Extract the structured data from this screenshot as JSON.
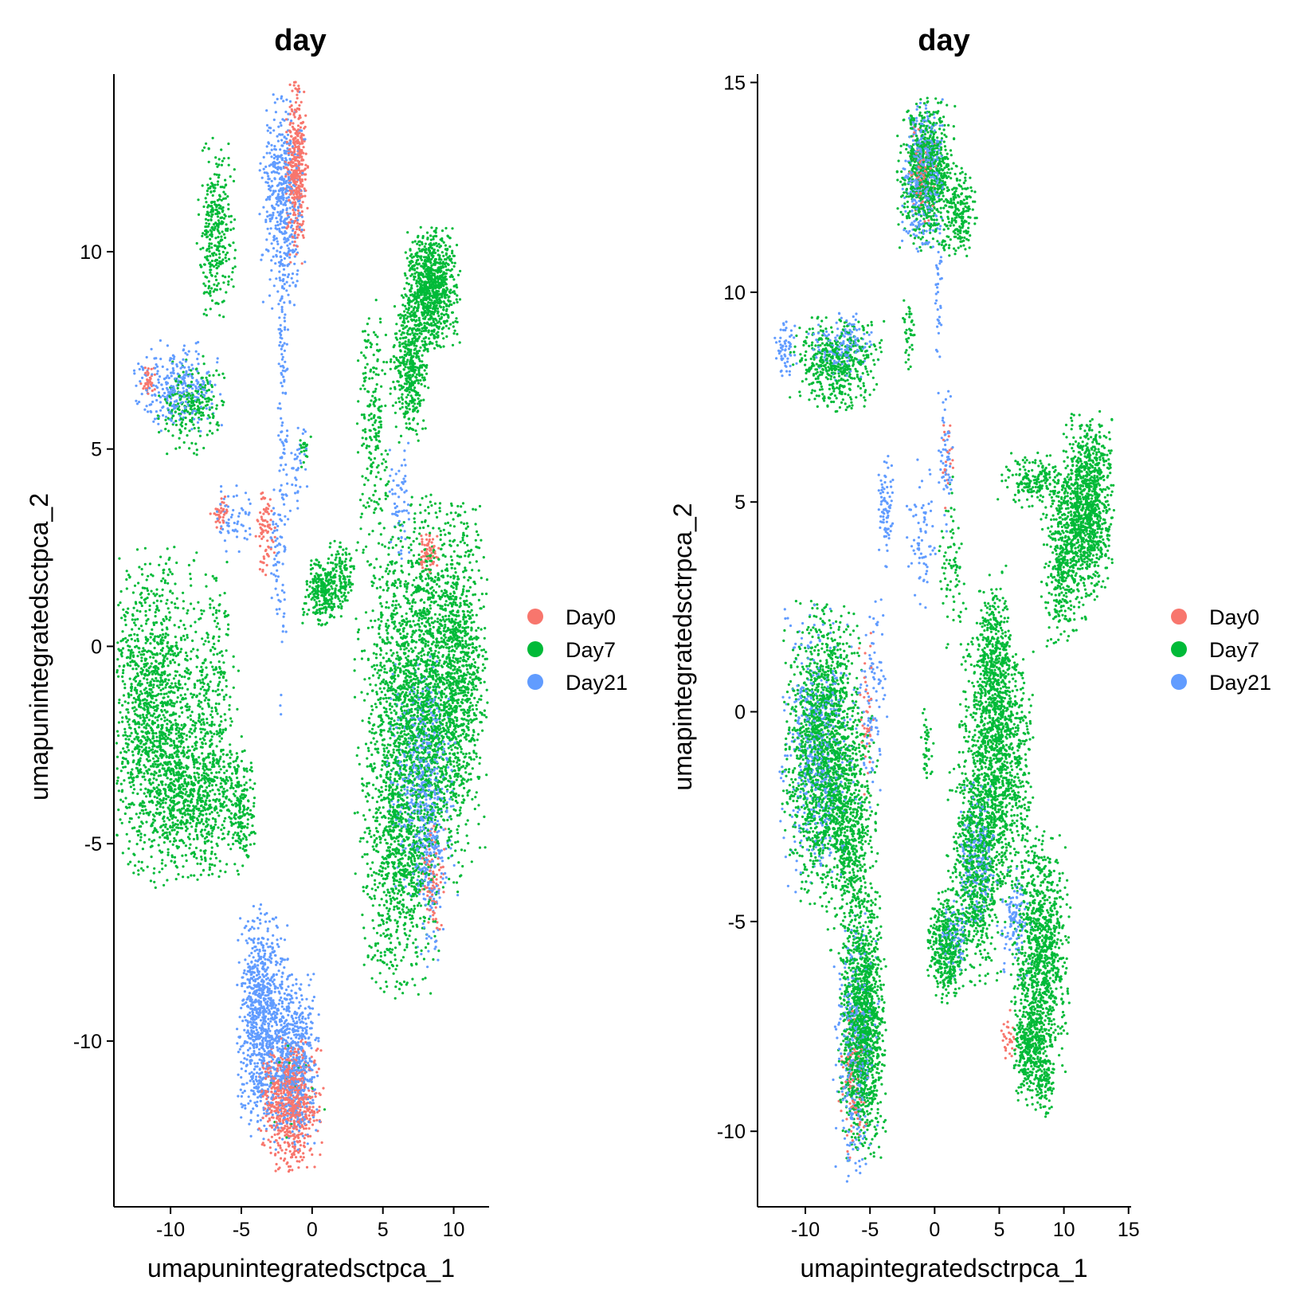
{
  "chart_data": [
    {
      "type": "scatter",
      "title": "day",
      "xlabel": "umapunintegratedsctpca_1",
      "ylabel": "umapunintegratedsctpca_2",
      "xlim": [
        -14,
        12.5
      ],
      "ylim": [
        -14.2,
        14.5
      ],
      "xticks": [
        -10,
        -5,
        0,
        5,
        10
      ],
      "yticks": [
        -10,
        -5,
        0,
        5,
        10
      ],
      "legend_position": "right",
      "clusters": [
        {
          "series": "Day21",
          "x": -2.1,
          "y": 11.3,
          "sx": 0.7,
          "sy": 1.2,
          "n": 450
        },
        {
          "series": "Day0",
          "x": -1.1,
          "y": 12.0,
          "sx": 0.35,
          "sy": 1.0,
          "n": 380
        },
        {
          "series": "Day7",
          "x": -6.8,
          "y": 10.6,
          "sx": 0.6,
          "sy": 1.0,
          "n": 320
        },
        {
          "series": "Day21",
          "x": -2.1,
          "y": 6.0,
          "sx": 0.18,
          "sy": 3.5,
          "n": 150
        },
        {
          "series": "Day21",
          "x": -9.6,
          "y": 6.6,
          "sx": 1.4,
          "sy": 0.5,
          "n": 300
        },
        {
          "series": "Day7",
          "x": -8.6,
          "y": 6.1,
          "sx": 1.1,
          "sy": 0.55,
          "n": 250
        },
        {
          "series": "Day0",
          "x": -11.6,
          "y": 6.7,
          "sx": 0.25,
          "sy": 0.18,
          "n": 40
        },
        {
          "series": "Day0",
          "x": -6.5,
          "y": 3.4,
          "sx": 0.3,
          "sy": 0.2,
          "n": 40
        },
        {
          "series": "Day21",
          "x": -5.5,
          "y": 3.2,
          "sx": 0.6,
          "sy": 0.4,
          "n": 60
        },
        {
          "series": "Day0",
          "x": -3.3,
          "y": 2.9,
          "sx": 0.3,
          "sy": 0.5,
          "n": 80
        },
        {
          "series": "Day21",
          "x": -2.6,
          "y": 2.3,
          "sx": 0.2,
          "sy": 0.8,
          "n": 40
        },
        {
          "series": "Day21",
          "x": -1.0,
          "y": 4.5,
          "sx": 0.4,
          "sy": 0.5,
          "n": 40
        },
        {
          "series": "Day7",
          "x": -0.5,
          "y": 5.0,
          "sx": 0.2,
          "sy": 0.2,
          "n": 20
        },
        {
          "series": "Day7",
          "x": -11.0,
          "y": -1.8,
          "sx": 1.6,
          "sy": 1.9,
          "n": 1500
        },
        {
          "series": "Day7",
          "x": -8.2,
          "y": -3.8,
          "sx": 1.6,
          "sy": 0.9,
          "n": 600
        },
        {
          "series": "Day7",
          "x": -6.8,
          "y": -1.5,
          "sx": 0.7,
          "sy": 1.7,
          "n": 280
        },
        {
          "series": "Day7",
          "x": -5.0,
          "y": -4.2,
          "sx": 0.5,
          "sy": 0.7,
          "n": 180
        },
        {
          "series": "Day21",
          "x": -3.5,
          "y": -9.5,
          "sx": 0.8,
          "sy": 1.3,
          "n": 900
        },
        {
          "series": "Day21",
          "x": -1.3,
          "y": -10.5,
          "sx": 0.8,
          "sy": 1.0,
          "n": 600
        },
        {
          "series": "Day0",
          "x": -1.5,
          "y": -11.6,
          "sx": 1.0,
          "sy": 0.75,
          "n": 700
        },
        {
          "series": "Day7",
          "x": -1.0,
          "y": -11.2,
          "sx": 1.0,
          "sy": 0.6,
          "n": 15
        },
        {
          "series": "Day7",
          "x": 8.4,
          "y": 9.1,
          "sx": 0.9,
          "sy": 0.7,
          "n": 900
        },
        {
          "series": "Day7",
          "x": 6.9,
          "y": 7.0,
          "sx": 0.6,
          "sy": 0.8,
          "n": 400
        },
        {
          "series": "Day7",
          "x": 4.3,
          "y": 5.8,
          "sx": 0.5,
          "sy": 1.5,
          "n": 200
        },
        {
          "series": "Day7",
          "x": 0.7,
          "y": 1.4,
          "sx": 0.6,
          "sy": 0.4,
          "n": 250
        },
        {
          "series": "Day7",
          "x": 2.1,
          "y": 1.8,
          "sx": 0.5,
          "sy": 0.4,
          "n": 120
        },
        {
          "series": "Day0",
          "x": 8.2,
          "y": 2.4,
          "sx": 0.35,
          "sy": 0.25,
          "n": 70
        },
        {
          "series": "Day21",
          "x": 6.2,
          "y": 3.7,
          "sx": 0.35,
          "sy": 0.7,
          "n": 60
        },
        {
          "series": "Day7",
          "x": 7.8,
          "y": -1.2,
          "sx": 2.1,
          "sy": 2.2,
          "n": 2400
        },
        {
          "series": "Day7",
          "x": 10.4,
          "y": -0.5,
          "sx": 0.8,
          "sy": 1.8,
          "n": 600
        },
        {
          "series": "Day7",
          "x": 6.2,
          "y": -5.3,
          "sx": 1.2,
          "sy": 1.6,
          "n": 800
        },
        {
          "series": "Day21",
          "x": 7.8,
          "y": -3.4,
          "sx": 1.1,
          "sy": 1.4,
          "n": 500
        },
        {
          "series": "Day21",
          "x": 8.4,
          "y": -5.5,
          "sx": 0.5,
          "sy": 1.2,
          "n": 150
        },
        {
          "series": "Day0",
          "x": 8.5,
          "y": -5.9,
          "sx": 0.4,
          "sy": 0.8,
          "n": 90
        }
      ]
    },
    {
      "type": "scatter",
      "title": "day",
      "xlabel": "umapintegratedsctrpca_1",
      "ylabel": "umapintegratedsctrpca_2",
      "xlim": [
        -13.7,
        15.2
      ],
      "ylim": [
        -11.8,
        15.2
      ],
      "xticks": [
        -10,
        -5,
        0,
        5,
        10,
        15
      ],
      "yticks": [
        -10,
        -5,
        0,
        5,
        10,
        15
      ],
      "legend_position": "right",
      "clusters": [
        {
          "series": "Day7",
          "x": -0.6,
          "y": 12.8,
          "sx": 1.0,
          "sy": 0.8,
          "n": 800
        },
        {
          "series": "Day21",
          "x": -0.9,
          "y": 12.8,
          "sx": 0.7,
          "sy": 0.8,
          "n": 400
        },
        {
          "series": "Day0",
          "x": -0.9,
          "y": 12.7,
          "sx": 0.5,
          "sy": 0.6,
          "n": 80
        },
        {
          "series": "Day7",
          "x": 1.9,
          "y": 11.9,
          "sx": 0.6,
          "sy": 0.5,
          "n": 200
        },
        {
          "series": "Day21",
          "x": 0.3,
          "y": 10.2,
          "sx": 0.15,
          "sy": 0.8,
          "n": 40
        },
        {
          "series": "Day7",
          "x": -7.6,
          "y": 8.3,
          "sx": 1.6,
          "sy": 0.5,
          "n": 500
        },
        {
          "series": "Day21",
          "x": -7.0,
          "y": 8.7,
          "sx": 1.2,
          "sy": 0.35,
          "n": 150
        },
        {
          "series": "Day21",
          "x": -11.5,
          "y": 8.7,
          "sx": 0.4,
          "sy": 0.3,
          "n": 60
        },
        {
          "series": "Day7",
          "x": -2.0,
          "y": 9.0,
          "sx": 0.2,
          "sy": 0.4,
          "n": 40
        },
        {
          "series": "Day21",
          "x": 0.9,
          "y": 6.0,
          "sx": 0.3,
          "sy": 0.8,
          "n": 60
        },
        {
          "series": "Day0",
          "x": 1.0,
          "y": 6.2,
          "sx": 0.2,
          "sy": 0.6,
          "n": 20
        },
        {
          "series": "Day21",
          "x": -3.8,
          "y": 4.8,
          "sx": 0.3,
          "sy": 0.6,
          "n": 80
        },
        {
          "series": "Day21",
          "x": -1.0,
          "y": 4.2,
          "sx": 0.5,
          "sy": 0.8,
          "n": 70
        },
        {
          "series": "Day7",
          "x": 1.4,
          "y": 3.5,
          "sx": 0.5,
          "sy": 1.0,
          "n": 80
        },
        {
          "series": "Day7",
          "x": 11.8,
          "y": 4.9,
          "sx": 0.9,
          "sy": 1.0,
          "n": 1000
        },
        {
          "series": "Day7",
          "x": 10.0,
          "y": 3.6,
          "sx": 0.8,
          "sy": 0.9,
          "n": 400
        },
        {
          "series": "Day7",
          "x": 7.8,
          "y": 5.5,
          "sx": 1.3,
          "sy": 0.3,
          "n": 200
        },
        {
          "series": "Day7",
          "x": -8.6,
          "y": -1.0,
          "sx": 1.4,
          "sy": 1.6,
          "n": 1700
        },
        {
          "series": "Day21",
          "x": -9.0,
          "y": -0.9,
          "sx": 1.3,
          "sy": 1.5,
          "n": 500
        },
        {
          "series": "Day7",
          "x": -6.3,
          "y": -3.0,
          "sx": 0.9,
          "sy": 1.3,
          "n": 500
        },
        {
          "series": "Day21",
          "x": -4.8,
          "y": 0.3,
          "sx": 0.5,
          "sy": 1.2,
          "n": 100
        },
        {
          "series": "Day0",
          "x": -5.2,
          "y": -0.2,
          "sx": 0.3,
          "sy": 1.0,
          "n": 40
        },
        {
          "series": "Day7",
          "x": -5.6,
          "y": -7.5,
          "sx": 0.8,
          "sy": 1.4,
          "n": 1300
        },
        {
          "series": "Day21",
          "x": -6.1,
          "y": -8.0,
          "sx": 0.8,
          "sy": 1.4,
          "n": 350
        },
        {
          "series": "Day0",
          "x": -6.3,
          "y": -8.8,
          "sx": 0.5,
          "sy": 0.9,
          "n": 100
        },
        {
          "series": "Day7",
          "x": -0.6,
          "y": -0.8,
          "sx": 0.25,
          "sy": 0.4,
          "n": 40
        },
        {
          "series": "Day7",
          "x": 4.6,
          "y": 1.2,
          "sx": 0.6,
          "sy": 1.0,
          "n": 350
        },
        {
          "series": "Day7",
          "x": 4.8,
          "y": -1.2,
          "sx": 1.3,
          "sy": 1.5,
          "n": 1300
        },
        {
          "series": "Day7",
          "x": 3.2,
          "y": -3.8,
          "sx": 1.0,
          "sy": 1.2,
          "n": 700
        },
        {
          "series": "Day21",
          "x": 3.3,
          "y": -3.5,
          "sx": 0.7,
          "sy": 0.8,
          "n": 200
        },
        {
          "series": "Day7",
          "x": 0.9,
          "y": -5.6,
          "sx": 0.7,
          "sy": 0.6,
          "n": 400
        },
        {
          "series": "Day21",
          "x": 1.5,
          "y": -5.4,
          "sx": 0.5,
          "sy": 0.4,
          "n": 80
        },
        {
          "series": "Day7",
          "x": 8.2,
          "y": -5.7,
          "sx": 1.0,
          "sy": 1.3,
          "n": 1000
        },
        {
          "series": "Day7",
          "x": 7.5,
          "y": -8.0,
          "sx": 0.7,
          "sy": 0.6,
          "n": 350
        },
        {
          "series": "Day7",
          "x": 8.6,
          "y": -9.0,
          "sx": 0.35,
          "sy": 0.3,
          "n": 80
        },
        {
          "series": "Day21",
          "x": 6.2,
          "y": -5.0,
          "sx": 0.6,
          "sy": 0.6,
          "n": 120
        },
        {
          "series": "Day0",
          "x": 5.7,
          "y": -7.8,
          "sx": 0.25,
          "sy": 0.3,
          "n": 30
        }
      ]
    }
  ],
  "legend": {
    "items": [
      {
        "label": "Day0",
        "color": "#F8766D"
      },
      {
        "label": "Day7",
        "color": "#00BA38"
      },
      {
        "label": "Day21",
        "color": "#619CFF"
      }
    ]
  },
  "colors": {
    "Day0": "#F8766D",
    "Day7": "#00BA38",
    "Day21": "#619CFF"
  }
}
